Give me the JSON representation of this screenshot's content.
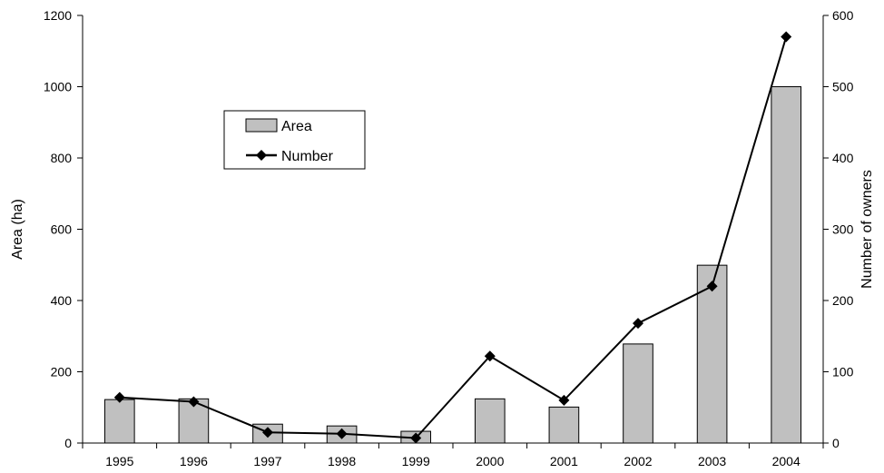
{
  "chart_data": {
    "type": "bar",
    "categories": [
      "1995",
      "1996",
      "1997",
      "1998",
      "1999",
      "2000",
      "2001",
      "2002",
      "2003",
      "2004"
    ],
    "series": [
      {
        "name": "Area",
        "type": "bar",
        "axis": "left",
        "values": [
          122,
          124,
          53,
          48,
          33,
          124,
          101,
          278,
          499,
          1000
        ]
      },
      {
        "name": "Number",
        "type": "line",
        "axis": "right",
        "marker": "diamond",
        "values": [
          64,
          58,
          15,
          13,
          7,
          122,
          60,
          168,
          220,
          570
        ]
      }
    ],
    "title": "",
    "xlabel": "",
    "ylabel": "Area (ha)",
    "ylabel_right": "Number of owners",
    "ylim": [
      0,
      1200
    ],
    "ylim_right": [
      0,
      600
    ],
    "yticks": [
      "0",
      "200",
      "400",
      "600",
      "800",
      "1000",
      "1200"
    ],
    "yticks_right": [
      "0",
      "100",
      "200",
      "300",
      "400",
      "500",
      "600"
    ],
    "grid": false,
    "legend": "upper-left-inside",
    "colors": {
      "bar_fill": "#c0c0c0",
      "bar_stroke": "#000000",
      "line": "#000000",
      "axis": "#000000"
    }
  }
}
